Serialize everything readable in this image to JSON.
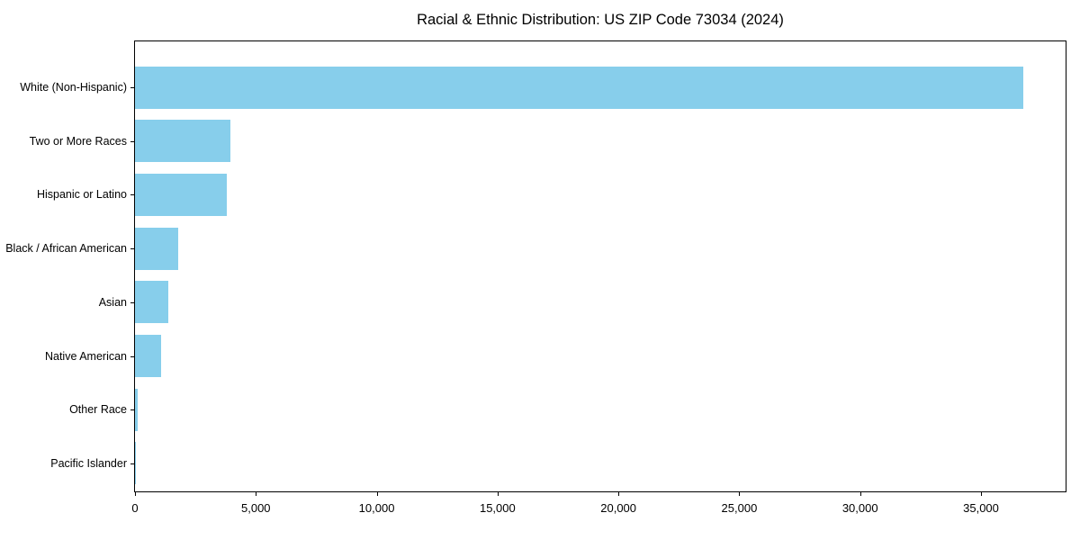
{
  "figure": {
    "background": "#ffffff",
    "text_color": "#000000"
  },
  "chart_data": {
    "type": "bar",
    "orientation": "horizontal",
    "title": "Racial & Ethnic Distribution: US ZIP Code 73034 (2024)",
    "xlabel": "",
    "ylabel": "",
    "categories": [
      "White (Non-Hispanic)",
      "Two or More Races",
      "Hispanic or Latino",
      "Black / African American",
      "Asian",
      "Native American",
      "Other Race",
      "Pacific Islander"
    ],
    "values": [
      36750,
      3940,
      3800,
      1790,
      1380,
      1080,
      110,
      20
    ],
    "bar_color": "#87CEEB",
    "xlim": [
      0,
      38500
    ],
    "x_ticks": [
      0,
      5000,
      10000,
      15000,
      20000,
      25000,
      30000,
      35000
    ],
    "x_tick_labels": [
      "0",
      "5,000",
      "10,000",
      "15,000",
      "20,000",
      "25,000",
      "30,000",
      "35,000"
    ],
    "grid": false,
    "legend": null,
    "spines": "full-box"
  }
}
